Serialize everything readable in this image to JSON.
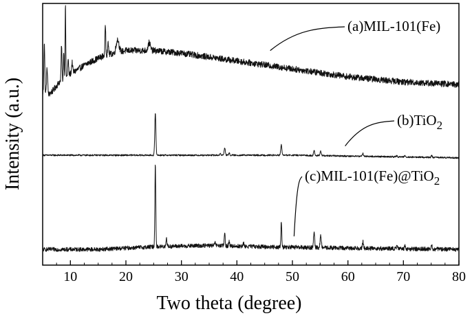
{
  "chart_data": {
    "type": "line",
    "title": "",
    "xlabel": "Two theta (degree)",
    "ylabel": "Intensity (a.u.)",
    "xlim": [
      5,
      80
    ],
    "xticks": [
      10,
      20,
      30,
      40,
      50,
      60,
      70,
      80
    ],
    "y_tick_labels": false,
    "grid": false,
    "legend": "none",
    "series": [
      {
        "label_main": "(a)MIL-101(Fe)",
        "label_sub": "",
        "baseline": 0.66,
        "noise": 0.012,
        "background": [
          [
            5,
            0.7
          ],
          [
            6,
            0.69
          ],
          [
            7,
            0.71
          ],
          [
            8,
            0.74
          ],
          [
            10,
            0.77
          ],
          [
            13,
            0.81
          ],
          [
            16,
            0.84
          ],
          [
            20,
            0.86
          ],
          [
            25,
            0.86
          ],
          [
            30,
            0.85
          ],
          [
            40,
            0.82
          ],
          [
            50,
            0.79
          ],
          [
            60,
            0.76
          ],
          [
            70,
            0.74
          ],
          [
            80,
            0.73
          ]
        ],
        "peaks": [
          [
            5.3,
            0.2,
            0.08
          ],
          [
            5.8,
            0.1,
            0.1
          ],
          [
            8.4,
            0.14,
            0.07
          ],
          [
            8.8,
            0.11,
            0.06
          ],
          [
            9.1,
            0.28,
            0.06
          ],
          [
            9.6,
            0.06,
            0.08
          ],
          [
            10.3,
            0.04,
            0.1
          ],
          [
            16.3,
            0.12,
            0.07
          ],
          [
            16.8,
            0.04,
            0.1
          ],
          [
            18.5,
            0.05,
            0.25
          ],
          [
            24.2,
            0.03,
            0.2
          ]
        ],
        "label_anchor": [
          46,
          0.82
        ],
        "label_pos": [
          505,
          45
        ]
      },
      {
        "label_main": "(b)TiO",
        "label_sub": "2",
        "baseline": 0.42,
        "noise": 0.003,
        "background": [
          [
            5,
            0.45
          ],
          [
            15,
            0.45
          ],
          [
            30,
            0.45
          ],
          [
            50,
            0.45
          ],
          [
            80,
            0.44
          ]
        ],
        "peaks": [
          [
            25.3,
            0.16,
            0.1
          ],
          [
            37.0,
            0.006,
            0.1
          ],
          [
            37.8,
            0.03,
            0.1
          ],
          [
            38.6,
            0.008,
            0.1
          ],
          [
            48.0,
            0.04,
            0.1
          ],
          [
            53.9,
            0.02,
            0.1
          ],
          [
            55.1,
            0.018,
            0.1
          ],
          [
            62.7,
            0.012,
            0.1
          ],
          [
            68.8,
            0.004,
            0.1
          ],
          [
            70.3,
            0.006,
            0.1
          ],
          [
            75.1,
            0.007,
            0.1
          ]
        ],
        "label_anchor": [
          59.5,
          0.455
        ],
        "label_pos": [
          577,
          182
        ]
      },
      {
        "label_main": "(c)MIL-101(Fe)@TiO",
        "label_sub": "2",
        "baseline": 0.06,
        "noise": 0.008,
        "background": [
          [
            5,
            0.06
          ],
          [
            15,
            0.06
          ],
          [
            25,
            0.07
          ],
          [
            35,
            0.075
          ],
          [
            45,
            0.07
          ],
          [
            60,
            0.065
          ],
          [
            80,
            0.06
          ]
        ],
        "peaks": [
          [
            25.3,
            0.32,
            0.08
          ],
          [
            27.3,
            0.03,
            0.1
          ],
          [
            36.1,
            0.01,
            0.1
          ],
          [
            37.8,
            0.05,
            0.08
          ],
          [
            38.6,
            0.015,
            0.1
          ],
          [
            41.2,
            0.01,
            0.1
          ],
          [
            48.0,
            0.095,
            0.08
          ],
          [
            53.9,
            0.055,
            0.1
          ],
          [
            55.1,
            0.05,
            0.1
          ],
          [
            62.7,
            0.025,
            0.1
          ],
          [
            68.8,
            0.008,
            0.1
          ],
          [
            70.3,
            0.01,
            0.1
          ],
          [
            75.1,
            0.012,
            0.1
          ]
        ],
        "label_anchor": [
          50.3,
          0.11
        ],
        "label_pos": [
          443,
          263
        ]
      }
    ]
  }
}
